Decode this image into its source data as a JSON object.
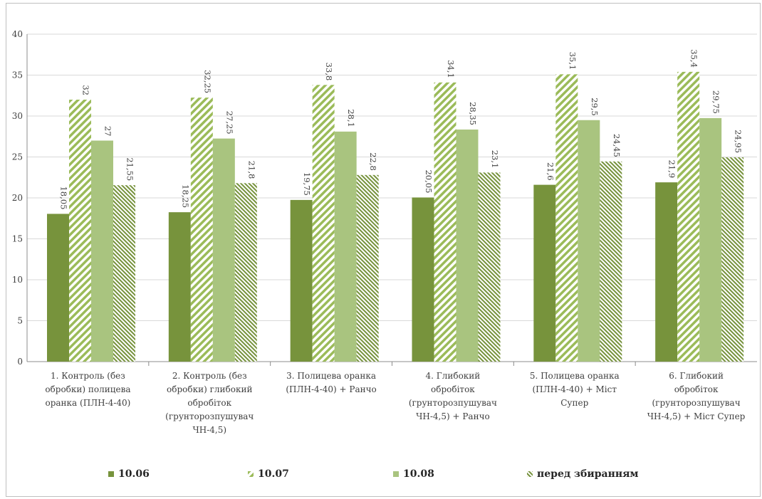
{
  "chart_data": {
    "type": "bar",
    "ylim": [
      0,
      40
    ],
    "yticks": [
      "0",
      "5",
      "10",
      "15",
      "20",
      "25",
      "30",
      "35",
      "40"
    ],
    "grid": "horizontal",
    "legend_position": "bottom",
    "categories": [
      [
        "1. Контроль (без",
        "обробки) полицева",
        "оранка (ПЛН-4-40)"
      ],
      [
        "2. Контроль (без",
        "обробки) глибокий",
        "обробіток",
        "(грунторозпушувач",
        "ЧН-4,5)"
      ],
      [
        "3. Полицева оранка",
        "(ПЛН-4-40) + Ранчо"
      ],
      [
        "4. Глибокий",
        "обробіток",
        "(грунторозпушувач",
        "ЧН-4,5) + Ранчо"
      ],
      [
        "5. Полицева оранка",
        "(ПЛН-4-40) + Міст",
        "Супер"
      ],
      [
        "6. Глибокий",
        "обробіток",
        "(грунторозпушувач",
        "ЧН-4,5) + Міст Супер"
      ]
    ],
    "series": [
      {
        "name": "10.06",
        "color": "#77933c",
        "pattern": "solid",
        "values": [
          18.05,
          18.25,
          19.75,
          20.05,
          21.6,
          21.9
        ],
        "labels": [
          "18,05",
          "18,25",
          "19,75",
          "20,05",
          "21,6",
          "21,9"
        ]
      },
      {
        "name": "10.07",
        "color": "#9bbb59",
        "pattern": "wide-upward-diagonal",
        "values": [
          32,
          32.25,
          33.8,
          34.1,
          35.1,
          35.4
        ],
        "labels": [
          "32",
          "32,25",
          "33,8",
          "34,1",
          "35,1",
          "35,4"
        ]
      },
      {
        "name": "10.08",
        "color": "#a9c47f",
        "pattern": "solid",
        "values": [
          27,
          27.25,
          28.1,
          28.35,
          29.5,
          29.75
        ],
        "labels": [
          "27",
          "27,25",
          "28,1",
          "28,35",
          "29,5",
          "29,75"
        ]
      },
      {
        "name": "перед збиранням",
        "color": "#76923c",
        "pattern": "narrow-downward-diagonal",
        "values": [
          21.55,
          21.8,
          22.8,
          23.1,
          24.45,
          24.95
        ],
        "labels": [
          "21,55",
          "21,8",
          "22,8",
          "23,1",
          "24,45",
          "24,95"
        ]
      }
    ]
  }
}
